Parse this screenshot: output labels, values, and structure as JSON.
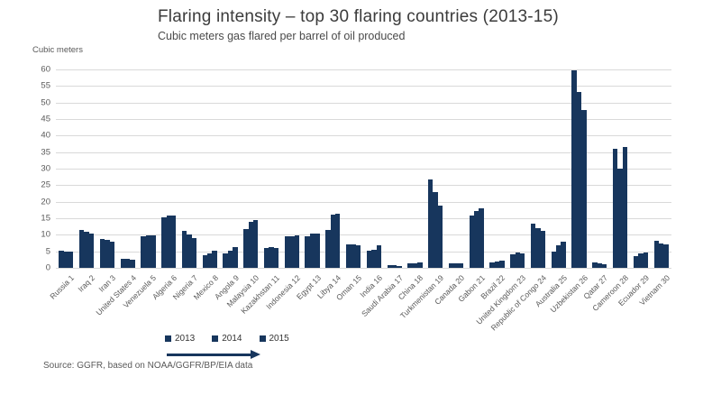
{
  "chart_data": {
    "type": "bar",
    "title": "Flaring intensity – top 30 flaring countries (2013-15)",
    "subtitle": "Cubic meters gas flared per barrel of oil produced",
    "y_axis_unit_label": "Cubic meters",
    "ylim": [
      0,
      60
    ],
    "yticks": [
      0,
      5,
      10,
      15,
      20,
      25,
      30,
      35,
      40,
      45,
      50,
      55,
      60
    ],
    "grid": true,
    "bar_color": "#17365d",
    "legend_position": "bottom-left",
    "categories": [
      "Russia 1",
      "Iraq 2",
      "Iran 3",
      "United States 4",
      "Venezuela 5",
      "Algeria 6",
      "Nigeria 7",
      "Mexico 8",
      "Angola 9",
      "Malaysia 10",
      "Kazakhstan 11",
      "Indonesia 12",
      "Egypt 13",
      "Libya 14",
      "Oman 15",
      "India 16",
      "Saudi Arabia 17",
      "China 18",
      "Turkmenistan 19",
      "Canada 20",
      "Gabon 21",
      "Brazil 22",
      "United Kingdom 23",
      "Republic of Congo 24",
      "Australia 25",
      "Uzbekistan 26",
      "Qatar 27",
      "Cameroon 28",
      "Ecuador 29",
      "Vietnam 30"
    ],
    "series": [
      {
        "name": "2013",
        "values": [
          5.3,
          11.5,
          8.8,
          2.6,
          9.6,
          15.3,
          11.2,
          3.9,
          4.5,
          11.7,
          6.0,
          9.5,
          9.5,
          11.5,
          7.0,
          5.2,
          0.7,
          1.4,
          26.6,
          1.4,
          15.9,
          1.7,
          4.2,
          13.5,
          5.0,
          59.7,
          1.7,
          36.0,
          3.6,
          8.1
        ]
      },
      {
        "name": "2014",
        "values": [
          5.0,
          11.0,
          8.5,
          2.6,
          9.9,
          15.9,
          10.0,
          4.5,
          5.1,
          13.9,
          6.3,
          9.6,
          10.3,
          16.0,
          7.2,
          5.5,
          0.7,
          1.5,
          22.8,
          1.5,
          17.3,
          2.0,
          4.7,
          12.0,
          6.8,
          53.3,
          1.5,
          30.1,
          4.3,
          7.5
        ]
      },
      {
        "name": "2015",
        "values": [
          4.8,
          10.4,
          7.9,
          2.5,
          9.8,
          15.8,
          8.9,
          5.1,
          6.2,
          14.5,
          6.0,
          9.7,
          10.5,
          16.5,
          6.7,
          6.7,
          0.6,
          1.7,
          18.7,
          1.5,
          18.1,
          2.1,
          4.5,
          11.3,
          8.0,
          47.6,
          1.2,
          36.6,
          4.7,
          7.0
        ]
      }
    ],
    "source": "Source: GGFR, based on NOAA/GGFR/BP/EIA data"
  }
}
